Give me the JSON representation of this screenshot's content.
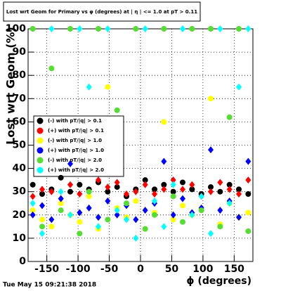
{
  "chart_data": {
    "type": "scatter",
    "title": "Lost wrt Geom for Primary vs φ (degrees) at | η | <= 1.0 at pT > 0.11",
    "x_label": "ϕ (degrees)",
    "y_label": "Lost wrt Geom (%)",
    "timestamp": "Tue May 15 09:21:38 2018",
    "x": [
      -172.5,
      -157.5,
      -142.5,
      -127.5,
      -112.5,
      -97.5,
      -82.5,
      -67.5,
      -52.5,
      -37.5,
      -22.5,
      -7.5,
      7.5,
      22.5,
      37.5,
      52.5,
      67.5,
      82.5,
      97.5,
      112.5,
      127.5,
      142.5,
      157.5,
      172.5
    ],
    "xlim": [
      -180,
      180
    ],
    "ylim": [
      0,
      100
    ],
    "xticks": [
      -150,
      -100,
      -50,
      0,
      50,
      100,
      150
    ],
    "yticks": [
      0,
      10,
      20,
      30,
      40,
      50,
      60,
      70,
      80,
      90,
      100
    ],
    "grid": true,
    "series": [
      {
        "name": "(-) with pT/|q| > 0.1",
        "color": "#000000",
        "values": [
          33,
          29,
          31,
          36,
          30,
          33,
          31,
          34,
          30,
          32,
          28,
          31,
          35,
          31,
          33,
          30,
          34,
          31,
          29,
          32,
          30,
          33,
          31,
          29
        ]
      },
      {
        "name": "(+) with pT/|q| > 0.1",
        "color": "#ff0000",
        "values": [
          28,
          31,
          30,
          27,
          33,
          29,
          30,
          35,
          32,
          34,
          29,
          30,
          33,
          29,
          31,
          35,
          31,
          33,
          28,
          30,
          34,
          31,
          29,
          35
        ]
      },
      {
        "name": "(-) with pT/|q| > 1.0",
        "color": "#ffff00",
        "values": [
          22,
          18,
          15,
          25,
          20,
          17,
          28,
          14,
          75,
          23,
          19,
          26,
          14,
          21,
          60,
          18,
          24,
          20,
          22,
          70,
          16,
          25,
          19,
          21
        ]
      },
      {
        "name": "(+) with pT/|q| > 1.0",
        "color": "#0000ff",
        "values": [
          20,
          24,
          18,
          27,
          42,
          21,
          23,
          19,
          26,
          20,
          24,
          18,
          22,
          25,
          43,
          20,
          27,
          21,
          23,
          48,
          22,
          26,
          19,
          43
        ]
      },
      {
        "name": "(-) with pT/|q| > 2.0",
        "color": "#55dd33",
        "values": [
          100,
          15,
          83,
          22,
          100,
          12,
          30,
          100,
          18,
          65,
          25,
          100,
          14,
          20,
          100,
          28,
          17,
          100,
          22,
          100,
          15,
          62,
          100,
          13
        ]
      },
      {
        "name": "(+) with pT/|q| > 2.0",
        "color": "#00ffff",
        "values": [
          25,
          12,
          100,
          30,
          20,
          100,
          75,
          15,
          100,
          22,
          18,
          10,
          100,
          26,
          15,
          33,
          100,
          20,
          28,
          12,
          100,
          25,
          75,
          100
        ]
      }
    ]
  }
}
